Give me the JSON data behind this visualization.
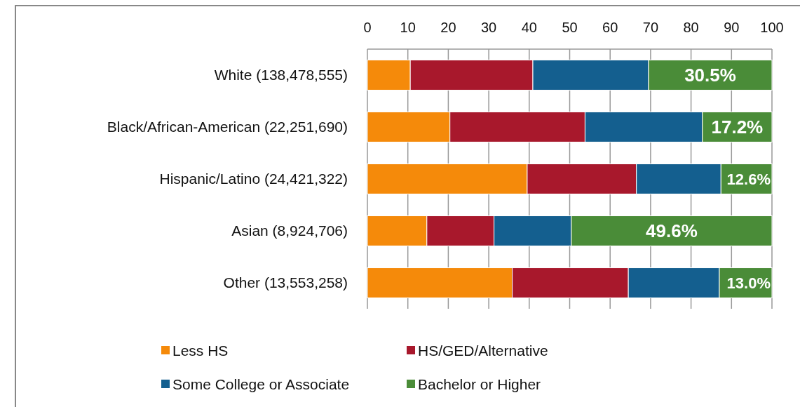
{
  "chart_data": {
    "type": "bar",
    "orientation": "horizontal",
    "stacked": true,
    "categories": [
      "White (138,478,555)",
      "Black/African-American (22,251,690)",
      "Hispanic/Latino (24,421,322)",
      "Asian (8,924,706)",
      "Other (13,553,258)"
    ],
    "series": [
      {
        "name": "Less HS",
        "color": "#f58a0a",
        "values": [
          10.6,
          20.4,
          39.5,
          14.7,
          35.8
        ]
      },
      {
        "name": "HS/GED/Alternative",
        "color": "#a8182c",
        "values": [
          30.3,
          33.4,
          27.0,
          16.6,
          28.7
        ]
      },
      {
        "name": "Some College or Associate",
        "color": "#145f8f",
        "values": [
          28.6,
          29.0,
          20.9,
          19.1,
          22.5
        ]
      },
      {
        "name": "Bachelor or Higher",
        "color": "#4a8c38",
        "values": [
          30.5,
          17.2,
          12.6,
          49.6,
          13.0
        ],
        "value_labels": [
          "30.5%",
          "17.2%",
          "12.6%",
          "49.6%",
          "13.0%"
        ]
      }
    ],
    "xlim": [
      0,
      100
    ],
    "xticks": [
      0,
      10,
      20,
      30,
      40,
      50,
      60,
      70,
      80,
      90,
      100
    ],
    "grid": "x",
    "legend": "bottom"
  }
}
